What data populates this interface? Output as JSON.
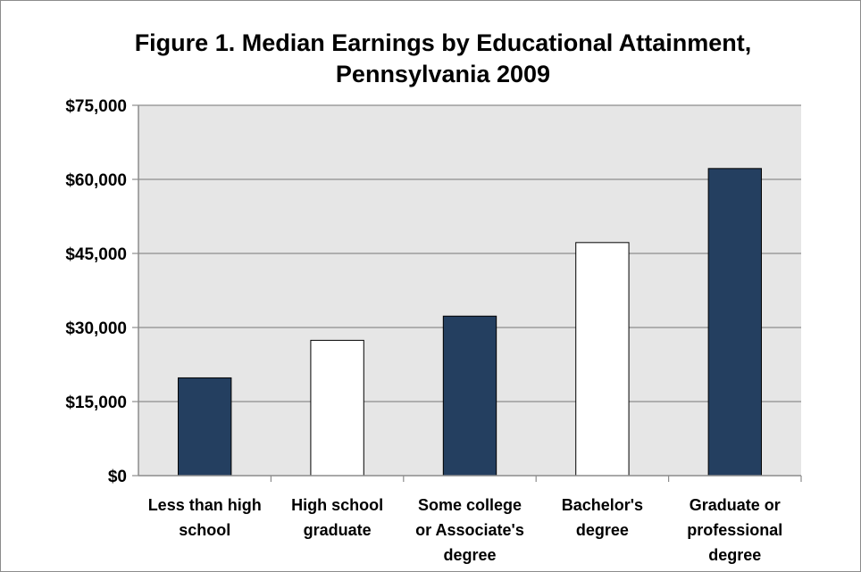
{
  "chart_data": {
    "type": "bar",
    "title": "Figure 1. Median Earnings by Educational Attainment, Pennsylvania 2009",
    "title_lines": [
      "Figure 1. Median Earnings by Educational Attainment,",
      "Pennsylvania 2009"
    ],
    "xlabel": "",
    "ylabel": "",
    "categories": [
      "Less than high school",
      "High school graduate",
      "Some college or Associate's degree",
      "Bachelor's degree",
      "Graduate or professional degree"
    ],
    "category_label_lines": [
      [
        "Less than high",
        "school"
      ],
      [
        "High school",
        "graduate"
      ],
      [
        "Some college",
        "or Associate's",
        "degree"
      ],
      [
        "Bachelor's",
        "degree"
      ],
      [
        "Graduate or",
        "professional",
        "degree"
      ]
    ],
    "values": [
      19800,
      27400,
      32300,
      47200,
      62200
    ],
    "bar_fills": [
      "#243f60",
      "#ffffff",
      "#243f60",
      "#ffffff",
      "#243f60"
    ],
    "ylim": [
      0,
      75000
    ],
    "yticks": [
      0,
      15000,
      30000,
      45000,
      60000,
      75000
    ],
    "ytick_labels": [
      "$0",
      "$15,000",
      "$30,000",
      "$45,000",
      "$60,000",
      "$75,000"
    ],
    "grid": true,
    "legend": "none",
    "colors": {
      "plot_background": "#e6e6e6",
      "gridline": "#8c8c8c",
      "bar_outline": "#000000"
    }
  }
}
